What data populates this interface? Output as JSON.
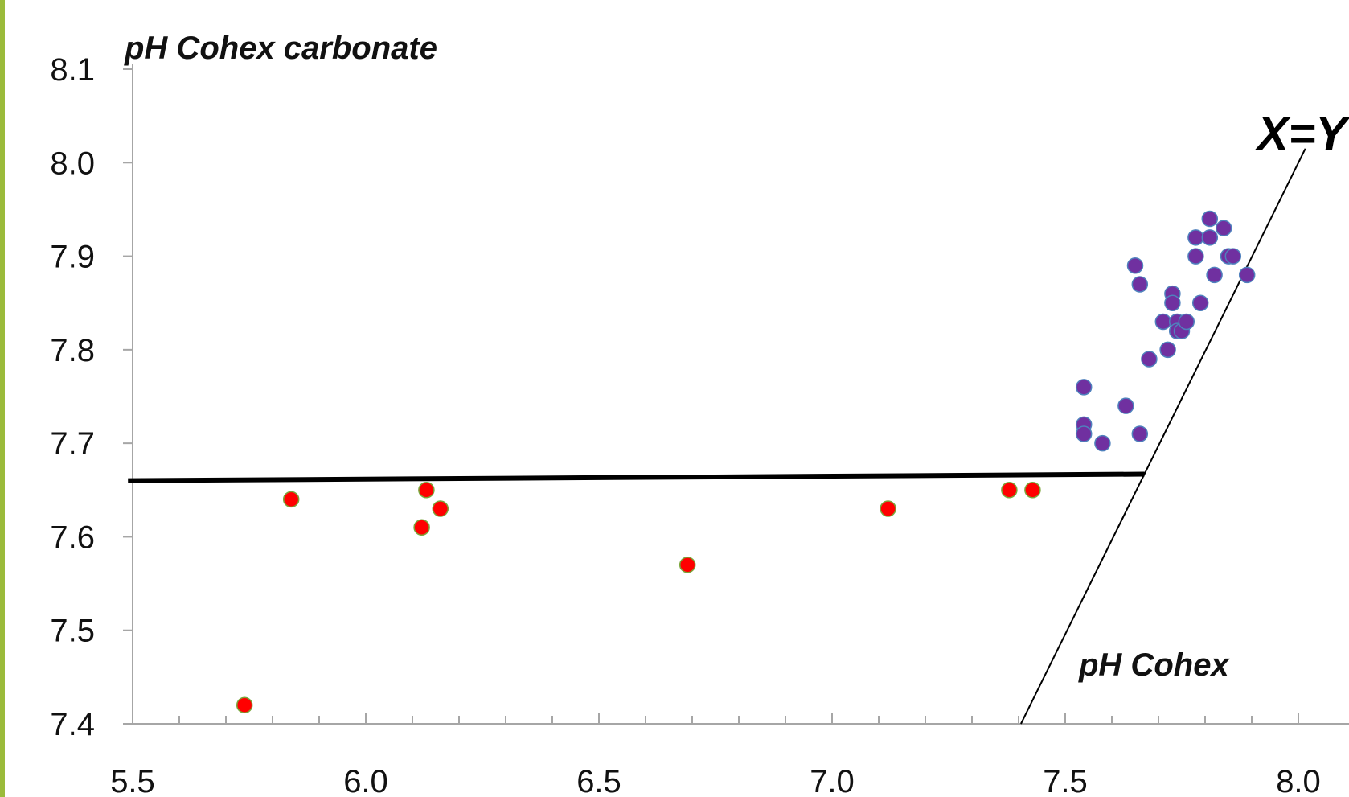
{
  "chart_data": {
    "type": "scatter",
    "title": "",
    "xlabel": "pH Cohex",
    "ylabel": "pH Cohex carbonate",
    "xlim": [
      5.5,
      8.0
    ],
    "ylim": [
      7.4,
      8.1
    ],
    "x_ticks": [
      "5.5",
      "6.0",
      "6.5",
      "7.0",
      "7.5",
      "8.0"
    ],
    "y_ticks": [
      "7.4",
      "7.5",
      "7.6",
      "7.7",
      "7.8",
      "7.9",
      "8.0",
      "8.1"
    ],
    "grid": false,
    "legend": "none",
    "annotation": "X=Y",
    "colors": {
      "red_fill": "#ff0000",
      "red_edge": "#7aa53a",
      "purple_fill": "#7030a0",
      "purple_edge": "#4f81bd",
      "axis": "#a6a6a6",
      "left_border": "#9bbb3b"
    },
    "series": [
      {
        "color": "#ff0000",
        "points": [
          [
            5.74,
            7.42
          ],
          [
            5.84,
            7.64
          ],
          [
            6.12,
            7.61
          ],
          [
            6.13,
            7.65
          ],
          [
            6.16,
            7.63
          ],
          [
            6.69,
            7.57
          ],
          [
            7.12,
            7.63
          ],
          [
            7.38,
            7.65
          ],
          [
            7.43,
            7.65
          ]
        ]
      },
      {
        "color": "#7030a0",
        "points": [
          [
            7.54,
            7.76
          ],
          [
            7.54,
            7.72
          ],
          [
            7.54,
            7.71
          ],
          [
            7.58,
            7.7
          ],
          [
            7.63,
            7.74
          ],
          [
            7.65,
            7.89
          ],
          [
            7.66,
            7.87
          ],
          [
            7.66,
            7.71
          ],
          [
            7.68,
            7.79
          ],
          [
            7.71,
            7.83
          ],
          [
            7.72,
            7.8
          ],
          [
            7.73,
            7.86
          ],
          [
            7.73,
            7.85
          ],
          [
            7.74,
            7.83
          ],
          [
            7.74,
            7.82
          ],
          [
            7.75,
            7.82
          ],
          [
            7.76,
            7.83
          ],
          [
            7.78,
            7.92
          ],
          [
            7.78,
            7.9
          ],
          [
            7.79,
            7.85
          ],
          [
            7.81,
            7.94
          ],
          [
            7.81,
            7.92
          ],
          [
            7.82,
            7.88
          ],
          [
            7.84,
            7.93
          ],
          [
            7.85,
            7.9
          ],
          [
            7.86,
            7.9
          ],
          [
            7.89,
            7.88
          ]
        ]
      }
    ],
    "lines": [
      {
        "name": "threshold-line",
        "from": [
          5.49,
          7.66
        ],
        "to": [
          7.67,
          7.667
        ]
      },
      {
        "name": "x-equals-y-line",
        "from": [
          7.405,
          7.4
        ],
        "to": [
          8.015,
          8.015
        ]
      }
    ]
  }
}
